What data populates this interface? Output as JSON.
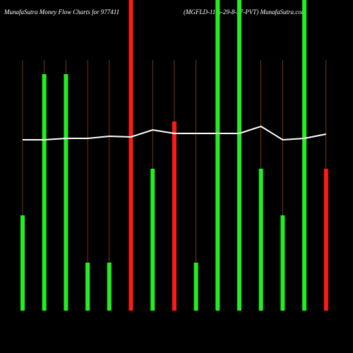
{
  "chart_data": {
    "type": "bar",
    "title": "MunafaSutra  Money Flow  Charts for 977411",
    "subtitle": "(MGFLD-11%-29-8-27-PVT) MunafaSutra.com",
    "categories": [
      null,
      null,
      null,
      null,
      null,
      null,
      null,
      null,
      null,
      null,
      null,
      null,
      null,
      null,
      null
    ],
    "values": [
      135,
      335,
      335,
      68,
      68,
      440,
      201,
      268,
      68,
      440,
      440,
      201,
      135,
      440,
      201
    ],
    "colors": [
      "#22ee22",
      "#22ee22",
      "#22ee22",
      "#22ee22",
      "#22ee22",
      "#ff1a1a",
      "#22ee22",
      "#ff1a1a",
      "#22ee22",
      "#22ee22",
      "#22ee22",
      "#22ee22",
      "#22ee22",
      "#22ee22",
      "#ff1a1a"
    ],
    "line": {
      "color": "#ffffff",
      "values": [
        242,
        242,
        244,
        244,
        247,
        246,
        256,
        251,
        251,
        251,
        251,
        261,
        242,
        244,
        250
      ]
    },
    "ylim": [
      0,
      440
    ]
  }
}
